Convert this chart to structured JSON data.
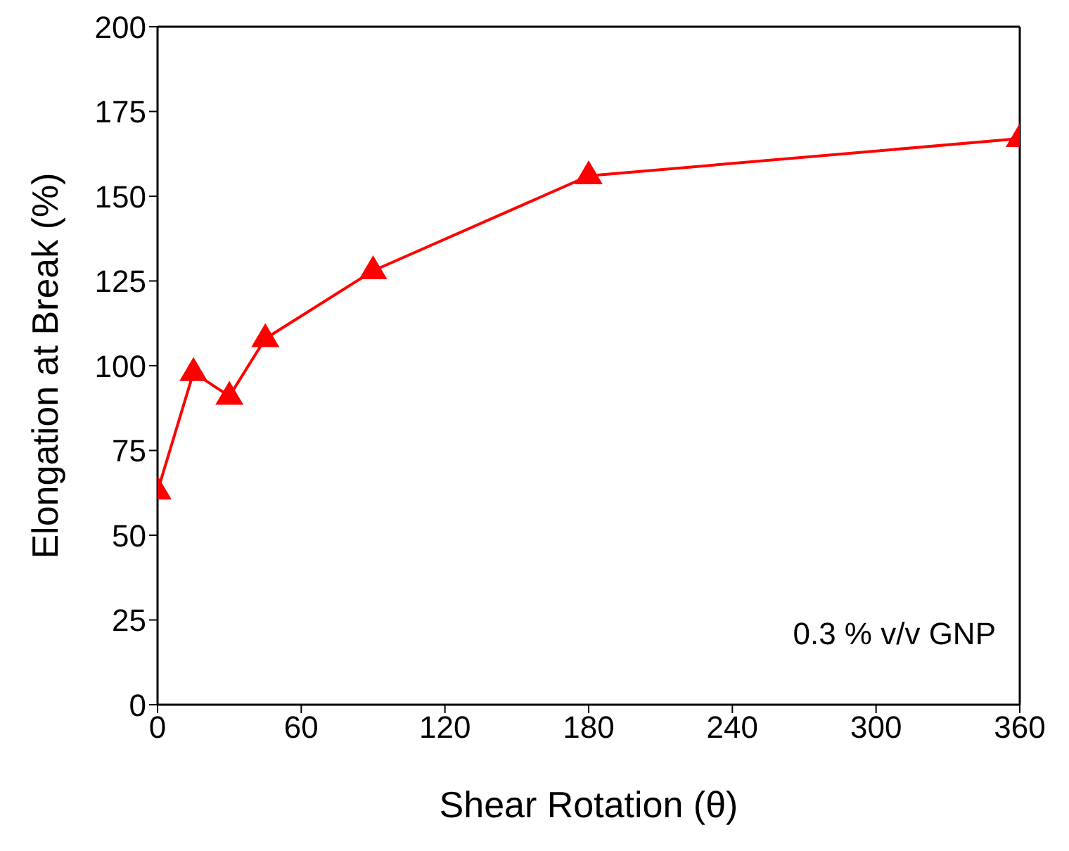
{
  "chart_data": {
    "type": "line",
    "xlabel": "Shear Rotation (θ)",
    "ylabel": "Elongation at Break (%)",
    "x": [
      0,
      15,
      30,
      45,
      90,
      180,
      360
    ],
    "series": [
      {
        "color": "#ff0000",
        "values": [
          63,
          98,
          91,
          108,
          128,
          156,
          167
        ]
      }
    ],
    "xlim": [
      0,
      360
    ],
    "xticks": [
      0,
      60,
      120,
      180,
      240,
      300,
      360
    ],
    "ylim": [
      0,
      200
    ],
    "yticks": [
      0,
      25,
      50,
      75,
      100,
      125,
      150,
      175,
      200
    ],
    "marker": "triangle",
    "line_style": "solid",
    "grid": false,
    "legend": false,
    "annotations": [
      "0.3 % v/v GNP"
    ]
  }
}
